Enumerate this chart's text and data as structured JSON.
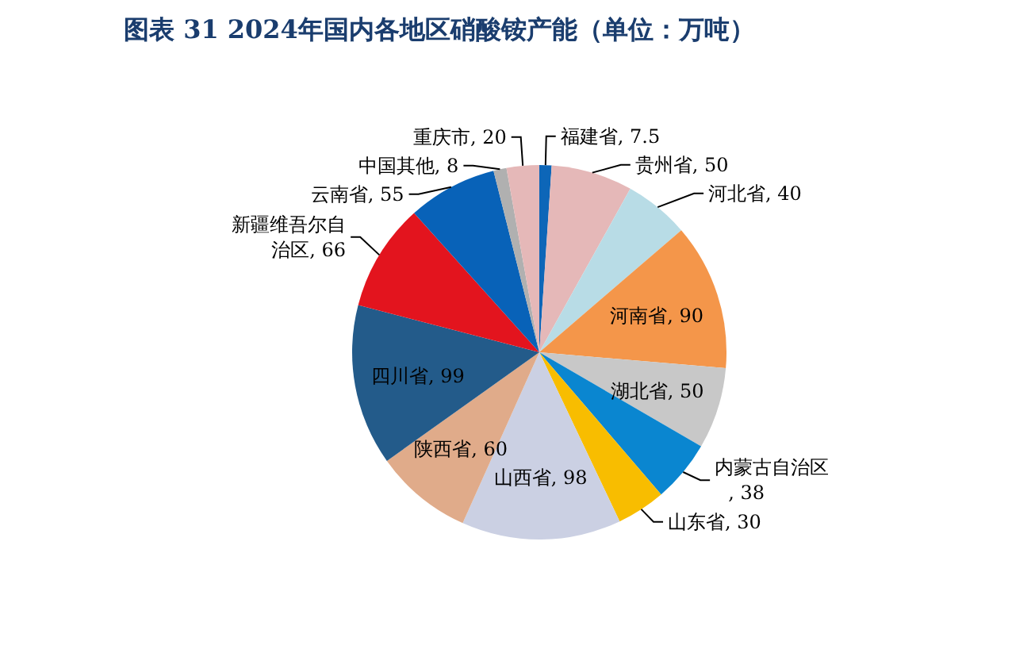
{
  "chart_data": {
    "type": "pie",
    "title": "图表 31  2024年国内各地区硝酸铵产能（单位：万吨）",
    "categories": [
      "福建省",
      "贵州省",
      "河北省",
      "河南省",
      "湖北省",
      "内蒙古自治区",
      "山东省",
      "山西省",
      "陕西省",
      "四川省",
      "新疆维吾尔自治区",
      "云南省",
      "中国其他",
      "重庆市"
    ],
    "values": [
      7.5,
      50,
      40,
      90,
      50,
      38,
      30,
      98,
      60,
      99,
      66,
      55,
      8,
      20
    ],
    "colors": [
      "#0d66b8",
      "#e5b8b8",
      "#b8dce6",
      "#f4964a",
      "#c8c8c8",
      "#0a86d0",
      "#f8bd00",
      "#cbd0e3",
      "#e0ab8a",
      "#235b8a",
      "#e3141e",
      "#0862b8",
      "#b0b0b0",
      "#e5b8b8"
    ],
    "value_labels": [
      ", 7.5",
      ", 50",
      ", 40",
      ", 90",
      ", 50",
      ", 38",
      ", 30",
      ", 98",
      ", 60",
      ", 99",
      ", 66",
      ", 55",
      ", 8",
      ", 20"
    ]
  }
}
